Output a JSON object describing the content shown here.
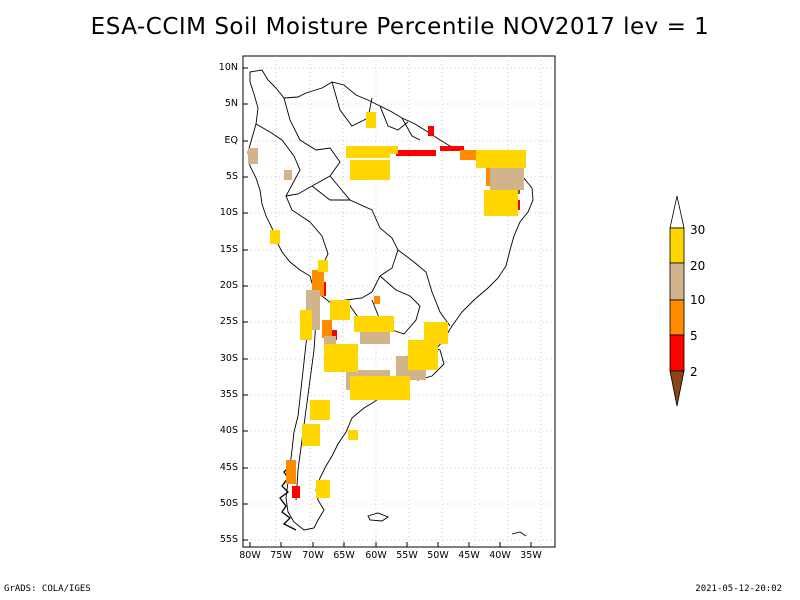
{
  "title": "ESA-CCIM Soil Moisture Percentile NOV2017 lev = 1",
  "footer": {
    "left": "GrADS: COLA/IGES",
    "right": "2021-05-12-20:02"
  },
  "axes": {
    "lat_labels": [
      "10N",
      "5N",
      "EQ",
      "5S",
      "10S",
      "15S",
      "20S",
      "25S",
      "30S",
      "35S",
      "40S",
      "45S",
      "50S",
      "55S"
    ],
    "lon_labels": [
      "80W",
      "75W",
      "70W",
      "65W",
      "60W",
      "55W",
      "50W",
      "45W",
      "40W",
      "35W"
    ]
  },
  "colorbar": {
    "labels": [
      "30",
      "20",
      "10",
      "5",
      "2"
    ],
    "colors": {
      "c30": "#ffffff",
      "c20_30": "#ffd600",
      "c10_20": "#d2b48c",
      "c5_10": "#ff8c00",
      "c2_5": "#ff0000",
      "c0_2": "#8b4513"
    }
  }
}
